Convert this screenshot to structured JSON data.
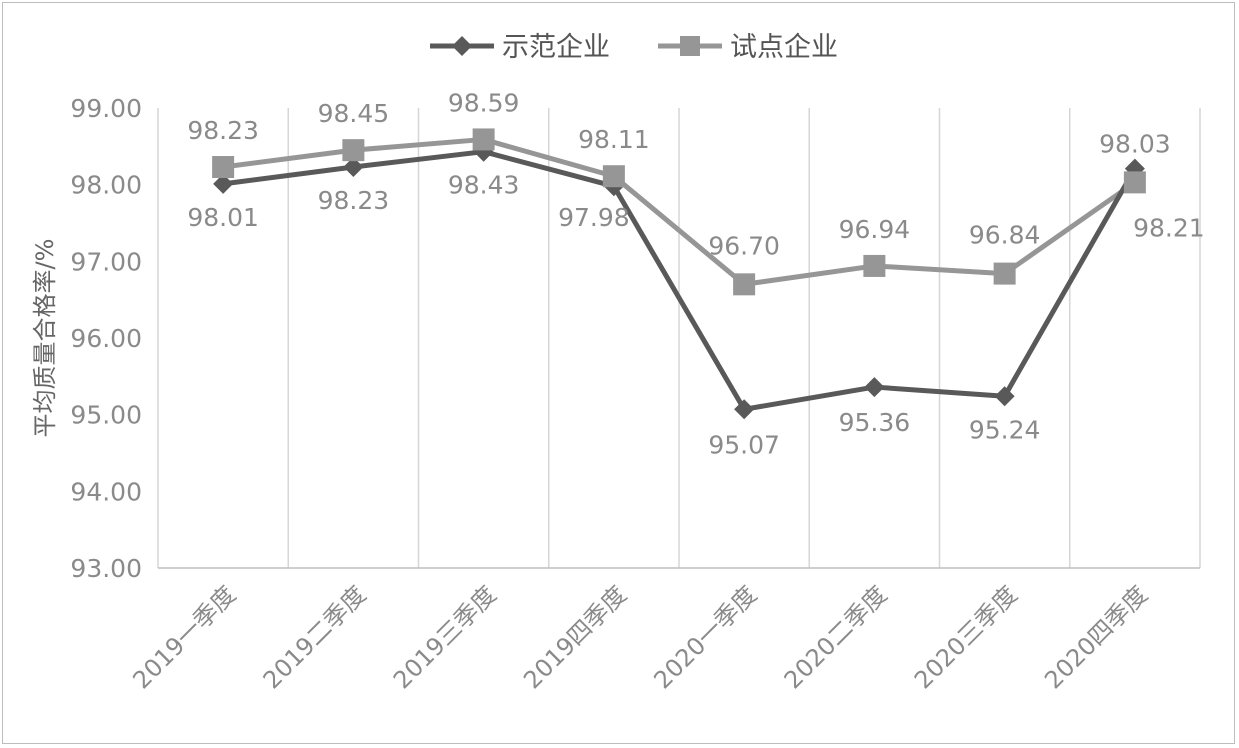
{
  "chart_data": {
    "type": "line",
    "title": "",
    "xlabel": "",
    "ylabel": "平均质量合格率/%",
    "categories": [
      "2019一季度",
      "2019二季度",
      "2019三季度",
      "2019四季度",
      "2020一季度",
      "2020二季度",
      "2020三季度",
      "2020四季度"
    ],
    "ylim": [
      93.0,
      99.0
    ],
    "yticks": [
      "93.00",
      "94.00",
      "95.00",
      "96.00",
      "97.00",
      "98.00",
      "99.00"
    ],
    "grid": "vertical",
    "legend_position": "top",
    "series": [
      {
        "name": "示范企业",
        "marker": "diamond",
        "color": "#595959",
        "values": [
          98.01,
          98.23,
          98.43,
          97.98,
          95.07,
          95.36,
          95.24,
          98.21
        ],
        "labels": [
          "98.01",
          "98.23",
          "98.43",
          "97.98",
          "95.07",
          "95.36",
          "95.24",
          "98.21"
        ]
      },
      {
        "name": "试点企业",
        "marker": "square",
        "color": "#969696",
        "values": [
          98.23,
          98.45,
          98.59,
          98.11,
          96.7,
          96.94,
          96.84,
          98.03
        ],
        "labels": [
          "98.23",
          "98.45",
          "98.59",
          "98.11",
          "96.70",
          "96.94",
          "96.84",
          "98.03"
        ]
      }
    ]
  }
}
